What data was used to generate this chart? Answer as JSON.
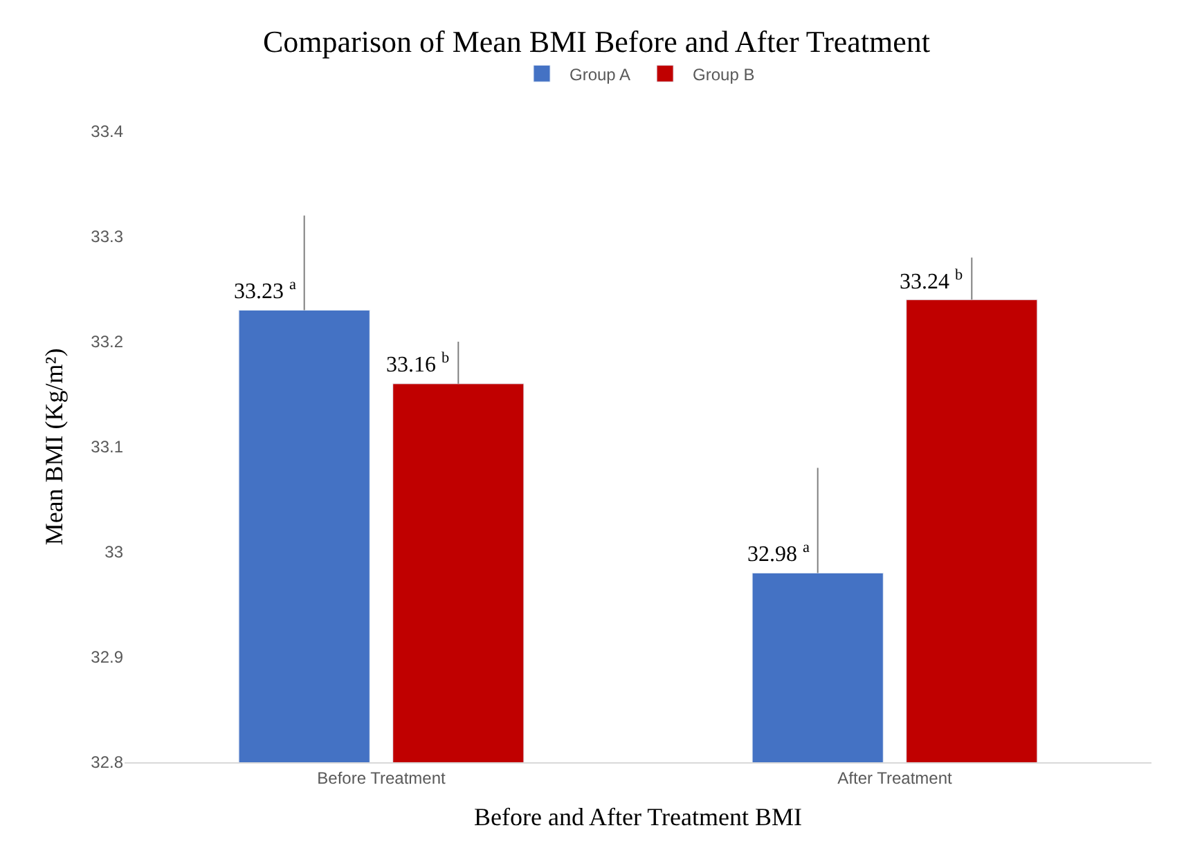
{
  "chart_data": {
    "type": "bar",
    "title": "Comparison of Mean BMI Before and After Treatment",
    "xlabel": "Before and After Treatment BMI",
    "ylabel": "Mean BMI (Kg/m²)",
    "categories": [
      "Before Treatment",
      "After Treatment"
    ],
    "series": [
      {
        "name": "Group A",
        "color": "#4472c4",
        "values": [
          33.23,
          32.98
        ],
        "errors": [
          0.09,
          0.1
        ],
        "value_labels": [
          "33.23 $^{a}$",
          "32.98 $^{a}$"
        ]
      },
      {
        "name": "Group B",
        "color": "#c00000",
        "values": [
          33.16,
          33.24
        ],
        "errors": [
          0.04,
          0.04
        ],
        "value_labels": [
          "33.16 $^{b}$",
          "33.24 $^{b}$"
        ]
      }
    ],
    "ylim": [
      32.8,
      33.4
    ],
    "yticks": [
      32.8,
      32.9,
      33,
      33.1,
      33.2,
      33.3,
      33.4
    ],
    "grid": false,
    "legend": "top"
  }
}
